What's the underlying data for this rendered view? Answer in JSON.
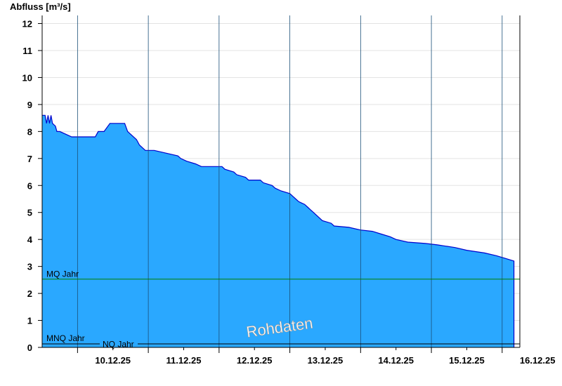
{
  "chart_data": {
    "type": "area",
    "ylabel": "Abfluss [m³/s]",
    "ylim": [
      0,
      12.3
    ],
    "yticks": [
      "0",
      "1",
      "2",
      "3",
      "4",
      "5",
      "6",
      "7",
      "8",
      "9",
      "10",
      "11",
      "12"
    ],
    "xlim": [
      "2025-12-09T12:00",
      "2025-12-16T06:00"
    ],
    "xtick_labels": [
      "10.12.25",
      "11.12.25",
      "12.12.25",
      "13.12.25",
      "14.12.25",
      "15.12.25",
      "16.12.25"
    ],
    "grid": true,
    "watermark": "Rohdaten",
    "colors": {
      "fill": "#2aa8ff",
      "line": "#0000cc",
      "mq_line": "#008000",
      "nq_line": "#000000"
    },
    "reference_lines": [
      {
        "label": "MQ Jahr",
        "value": 2.53
      },
      {
        "label": "MNQ Jahr",
        "value": 0.13
      },
      {
        "label": "NQ Jahr",
        "value": 0.13
      }
    ],
    "series": [
      {
        "x": [
          "2025-12-09T12:00",
          "2025-12-09T13:00",
          "2025-12-09T13:30",
          "2025-12-09T14:00",
          "2025-12-09T14:30",
          "2025-12-09T15:00",
          "2025-12-09T15:30",
          "2025-12-09T16:30",
          "2025-12-09T17:00",
          "2025-12-09T18:00",
          "2025-12-09T22:00",
          "2025-12-09T23:00",
          "2025-12-10T00:00",
          "2025-12-10T01:00",
          "2025-12-10T02:00",
          "2025-12-10T06:00",
          "2025-12-10T07:00",
          "2025-12-10T09:00",
          "2025-12-10T11:00",
          "2025-12-10T12:00",
          "2025-12-10T13:00",
          "2025-12-10T16:00",
          "2025-12-10T17:00",
          "2025-12-10T18:00",
          "2025-12-10T20:00",
          "2025-12-10T21:00",
          "2025-12-10T22:00",
          "2025-12-10T23:00",
          "2025-12-11T00:00",
          "2025-12-11T01:00",
          "2025-12-11T02:00",
          "2025-12-11T10:00",
          "2025-12-11T11:00",
          "2025-12-11T13:00",
          "2025-12-11T16:00",
          "2025-12-11T18:00",
          "2025-12-11T19:00",
          "2025-12-11T20:00",
          "2025-12-11T22:00",
          "2025-12-12T01:00",
          "2025-12-12T02:00",
          "2025-12-12T05:00",
          "2025-12-12T06:00",
          "2025-12-12T09:00",
          "2025-12-12T10:00",
          "2025-12-12T11:00",
          "2025-12-12T14:00",
          "2025-12-12T15:00",
          "2025-12-12T18:00",
          "2025-12-12T19:00",
          "2025-12-12T21:00",
          "2025-12-13T00:00",
          "2025-12-13T01:00",
          "2025-12-13T02:00",
          "2025-12-13T03:00",
          "2025-12-13T04:00",
          "2025-12-13T05:00",
          "2025-12-13T06:00",
          "2025-12-13T07:00",
          "2025-12-13T08:00",
          "2025-12-13T09:00",
          "2025-12-13T10:00",
          "2025-12-13T11:00",
          "2025-12-13T14:00",
          "2025-12-13T15:00",
          "2025-12-13T20:00",
          "2025-12-14T00:00",
          "2025-12-14T04:00",
          "2025-12-14T07:00",
          "2025-12-14T10:00",
          "2025-12-14T12:00",
          "2025-12-14T16:00",
          "2025-12-14T22:00",
          "2025-12-15T02:00",
          "2025-12-15T08:00",
          "2025-12-15T12:00",
          "2025-12-15T18:00",
          "2025-12-15T22:00",
          "2025-12-16T01:00",
          "2025-12-16T04:00"
        ],
        "values": [
          8.6,
          8.6,
          8.3,
          8.6,
          8.3,
          8.6,
          8.3,
          8.2,
          8.0,
          8.0,
          7.8,
          7.8,
          7.8,
          7.8,
          7.8,
          7.8,
          8.0,
          8.0,
          8.3,
          8.3,
          8.3,
          8.3,
          8.0,
          7.9,
          7.7,
          7.5,
          7.4,
          7.3,
          7.3,
          7.3,
          7.3,
          7.1,
          7.0,
          6.9,
          6.8,
          6.7,
          6.7,
          6.7,
          6.7,
          6.7,
          6.6,
          6.5,
          6.4,
          6.3,
          6.2,
          6.2,
          6.2,
          6.1,
          6.0,
          5.9,
          5.8,
          5.7,
          5.6,
          5.5,
          5.4,
          5.35,
          5.3,
          5.2,
          5.1,
          5.0,
          4.9,
          4.8,
          4.7,
          4.6,
          4.5,
          4.45,
          4.35,
          4.3,
          4.2,
          4.1,
          4.0,
          3.9,
          3.85,
          3.8,
          3.7,
          3.6,
          3.5,
          3.4,
          3.3,
          3.2
        ]
      }
    ]
  }
}
